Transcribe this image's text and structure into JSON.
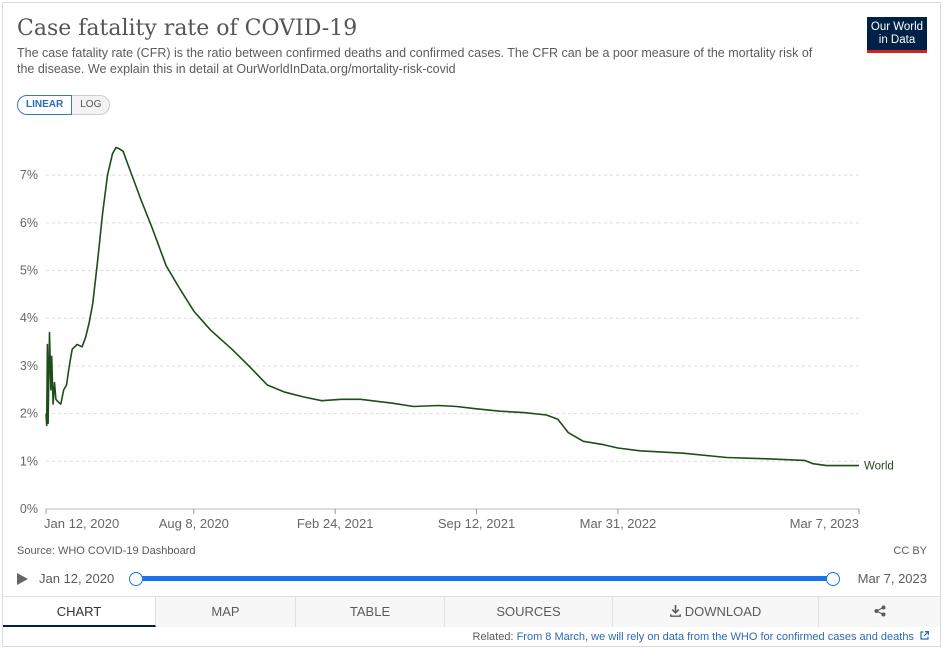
{
  "header": {
    "title": "Case fatality rate of COVID-19",
    "subtitle": "The case fatality rate (CFR) is the ratio between confirmed deaths and confirmed cases. The CFR can be a poor measure of the mortality risk of the disease. We explain this in detail at OurWorldInData.org/mortality-risk-covid",
    "logo_line1": "Our World",
    "logo_line2": "in Data"
  },
  "scale_toggle": {
    "linear": "LINEAR",
    "log": "LOG",
    "selected": "LINEAR"
  },
  "chart_data": {
    "type": "line",
    "title": "Case fatality rate of COVID-19",
    "y_scale": "linear",
    "ylim": [
      0,
      7.8
    ],
    "y_ticks": [
      0,
      1,
      2,
      3,
      4,
      5,
      6,
      7
    ],
    "y_tick_labels": [
      "0%",
      "1%",
      "2%",
      "3%",
      "4%",
      "5%",
      "6%",
      "7%"
    ],
    "x_range": [
      "2020-01-12",
      "2023-03-07"
    ],
    "x_tick_labels": [
      {
        "date": "2020-01-12",
        "label": "Jan 12, 2020"
      },
      {
        "date": "2020-08-08",
        "label": "Aug 8, 2020"
      },
      {
        "date": "2021-02-24",
        "label": "Feb 24, 2021"
      },
      {
        "date": "2021-09-12",
        "label": "Sep 12, 2021"
      },
      {
        "date": "2022-03-31",
        "label": "Mar 31, 2022"
      },
      {
        "date": "2023-03-07",
        "label": "Mar 7, 2023"
      }
    ],
    "grid": "horizontal dashed",
    "series": [
      {
        "name": "World",
        "color": "#1e4d1a",
        "points": [
          [
            "2020-01-12",
            2.0
          ],
          [
            "2020-01-13",
            1.75
          ],
          [
            "2020-01-14",
            3.45
          ],
          [
            "2020-01-15",
            1.8
          ],
          [
            "2020-01-17",
            3.7
          ],
          [
            "2020-01-19",
            2.5
          ],
          [
            "2020-01-20",
            3.2
          ],
          [
            "2020-01-22",
            2.2
          ],
          [
            "2020-01-24",
            2.65
          ],
          [
            "2020-01-26",
            2.3
          ],
          [
            "2020-01-29",
            2.25
          ],
          [
            "2020-02-02",
            2.2
          ],
          [
            "2020-02-06",
            2.5
          ],
          [
            "2020-02-10",
            2.6
          ],
          [
            "2020-02-14",
            3.0
          ],
          [
            "2020-02-18",
            3.35
          ],
          [
            "2020-02-25",
            3.45
          ],
          [
            "2020-03-03",
            3.4
          ],
          [
            "2020-03-08",
            3.6
          ],
          [
            "2020-03-13",
            3.9
          ],
          [
            "2020-03-18",
            4.3
          ],
          [
            "2020-03-25",
            5.2
          ],
          [
            "2020-04-01",
            6.2
          ],
          [
            "2020-04-08",
            7.0
          ],
          [
            "2020-04-15",
            7.45
          ],
          [
            "2020-04-20",
            7.58
          ],
          [
            "2020-04-25",
            7.55
          ],
          [
            "2020-04-30",
            7.5
          ],
          [
            "2020-05-10",
            7.1
          ],
          [
            "2020-05-25",
            6.5
          ],
          [
            "2020-06-10",
            5.9
          ],
          [
            "2020-06-30",
            5.1
          ],
          [
            "2020-07-20",
            4.6
          ],
          [
            "2020-08-08",
            4.15
          ],
          [
            "2020-09-01",
            3.75
          ],
          [
            "2020-10-01",
            3.35
          ],
          [
            "2020-10-25",
            3.0
          ],
          [
            "2020-11-20",
            2.6
          ],
          [
            "2020-12-15",
            2.45
          ],
          [
            "2021-01-10",
            2.35
          ],
          [
            "2021-02-05",
            2.27
          ],
          [
            "2021-03-05",
            2.3
          ],
          [
            "2021-04-01",
            2.3
          ],
          [
            "2021-05-15",
            2.22
          ],
          [
            "2021-06-15",
            2.15
          ],
          [
            "2021-07-20",
            2.17
          ],
          [
            "2021-08-15",
            2.15
          ],
          [
            "2021-09-12",
            2.1
          ],
          [
            "2021-10-15",
            2.05
          ],
          [
            "2021-11-20",
            2.02
          ],
          [
            "2021-12-20",
            1.97
          ],
          [
            "2022-01-05",
            1.88
          ],
          [
            "2022-01-20",
            1.6
          ],
          [
            "2022-02-10",
            1.42
          ],
          [
            "2022-03-10",
            1.35
          ],
          [
            "2022-03-31",
            1.28
          ],
          [
            "2022-05-01",
            1.22
          ],
          [
            "2022-07-01",
            1.17
          ],
          [
            "2022-09-01",
            1.08
          ],
          [
            "2022-11-01",
            1.05
          ],
          [
            "2022-12-20",
            1.02
          ],
          [
            "2023-01-01",
            0.95
          ],
          [
            "2023-01-20",
            0.91
          ],
          [
            "2023-03-07",
            0.91
          ]
        ]
      }
    ]
  },
  "footer": {
    "source": "Source: WHO COVID-19 Dashboard",
    "license": "CC BY"
  },
  "timeline": {
    "start_label": "Jan 12, 2020",
    "end_label": "Mar 7, 2023"
  },
  "tabs": [
    {
      "label": "CHART",
      "active": true
    },
    {
      "label": "MAP",
      "active": false
    },
    {
      "label": "TABLE",
      "active": false
    },
    {
      "label": "SOURCES",
      "active": false
    },
    {
      "label": "DOWNLOAD",
      "active": false
    },
    {
      "label": "",
      "active": false
    }
  ],
  "related": {
    "prefix": "Related:",
    "link_text": "From 8 March, we will rely on data from the WHO for confirmed cases and deaths"
  },
  "icons": {
    "download": "download-icon",
    "share": "share-icon",
    "external": "external-link-icon",
    "play": "play-icon"
  }
}
